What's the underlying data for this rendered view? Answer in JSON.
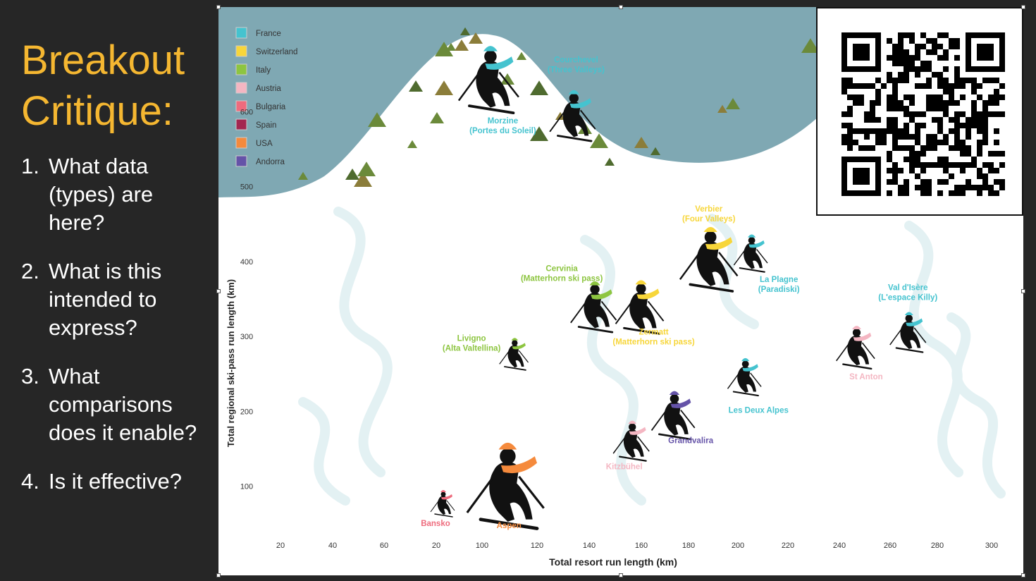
{
  "sidebar": {
    "title_line1": "Breakout",
    "title_line2": "Critique:",
    "questions": [
      {
        "num": "1.",
        "text": "What data (types) are here?"
      },
      {
        "num": "2.",
        "text": "What is this intended to express?"
      },
      {
        "num": "3.",
        "text": "What comparisons does it enable?"
      },
      {
        "num": "4.",
        "text": "Is it effective?"
      }
    ]
  },
  "colors": {
    "sidebar_bg": "#262626",
    "title": "#f5b731",
    "sky": "#7fa8b3",
    "tree": "#6b8a3a"
  },
  "chart_data": {
    "type": "scatter",
    "title": "",
    "xlabel": "Total resort run length (km)",
    "ylabel": "Total regional ski-pass run length (km)",
    "x_ticks": [
      "20",
      "40",
      "60",
      "20",
      "100",
      "120",
      "140",
      "160",
      "180",
      "200",
      "220",
      "240",
      "260",
      "280",
      "300"
    ],
    "y_ticks": [
      "100",
      "200",
      "300",
      "400",
      "500",
      "600"
    ],
    "xlim": [
      0,
      310
    ],
    "ylim": [
      0,
      700
    ],
    "legend": {
      "placement": "top-left",
      "entries": [
        {
          "name": "France",
          "color": "#45c3cf"
        },
        {
          "name": "Switzerland",
          "color": "#f7d63a"
        },
        {
          "name": "Italy",
          "color": "#8dc540"
        },
        {
          "name": "Austria",
          "color": "#f4b6c2"
        },
        {
          "name": "Bulgaria",
          "color": "#ee6b7d"
        },
        {
          "name": "Spain",
          "color": "#a32650"
        },
        {
          "name": "USA",
          "color": "#f58a3c"
        },
        {
          "name": "Andorra",
          "color": "#6553a8"
        }
      ]
    },
    "points": [
      {
        "label": "Morzine\n(Portes du Soleil)",
        "country": "France",
        "x": 100,
        "y": 650,
        "size": 1.25
      },
      {
        "label": "Courchevel\n(Three Valleys)",
        "country": "France",
        "x": 140,
        "y": 600,
        "size": 0.95
      },
      {
        "label": "Verbier\n(Four Valleys)",
        "country": "Switzerland",
        "x": 205,
        "y": 410,
        "size": 1.2
      },
      {
        "label": "La Plagne\n(Paradiski)",
        "country": "France",
        "x": 225,
        "y": 415,
        "size": 0.7
      },
      {
        "label": "Cervinia\n(Matterhorn ski pass)",
        "country": "Italy",
        "x": 150,
        "y": 345,
        "size": 0.95
      },
      {
        "label": "Zermatt\n(Matterhorn ski pass)",
        "country": "Switzerland",
        "x": 172,
        "y": 345,
        "size": 1.0
      },
      {
        "label": "Val d'Isère\n(L'espace Killy)",
        "country": "France",
        "x": 300,
        "y": 310,
        "size": 0.75
      },
      {
        "label": "St Anton",
        "country": "Austria",
        "x": 275,
        "y": 290,
        "size": 0.8
      },
      {
        "label": "Livigno\n(Alta Valtellina)",
        "country": "Italy",
        "x": 112,
        "y": 280,
        "size": 0.6
      },
      {
        "label": "Les Deux Alpes",
        "country": "France",
        "x": 222,
        "y": 250,
        "size": 0.7
      },
      {
        "label": "Grandvalira",
        "country": "Andorra",
        "x": 188,
        "y": 200,
        "size": 0.9
      },
      {
        "label": "Kitzbühel",
        "country": "Austria",
        "x": 168,
        "y": 165,
        "size": 0.75
      },
      {
        "label": "Aspen",
        "country": "USA",
        "x": 108,
        "y": 110,
        "size": 1.6
      },
      {
        "label": "Bansko",
        "country": "Bulgaria",
        "x": 78,
        "y": 80,
        "size": 0.5
      }
    ]
  }
}
